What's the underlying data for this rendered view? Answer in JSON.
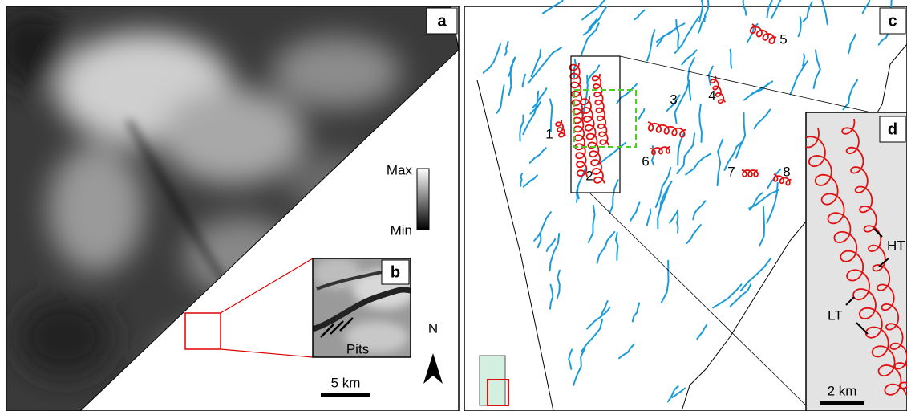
{
  "panels": {
    "a": {
      "label": "a",
      "colorbar": {
        "max": "Max",
        "min": "Min"
      },
      "scale_bar": "5 km",
      "north": "N"
    },
    "b": {
      "label": "b",
      "annotation": "Pits"
    },
    "c": {
      "label": "c",
      "feature_labels": [
        "1",
        "2",
        "3",
        "4",
        "5",
        "6",
        "7",
        "8"
      ]
    },
    "d": {
      "label": "d",
      "annotations": [
        "HT",
        "LT"
      ],
      "scale_bar": "2 km"
    }
  }
}
